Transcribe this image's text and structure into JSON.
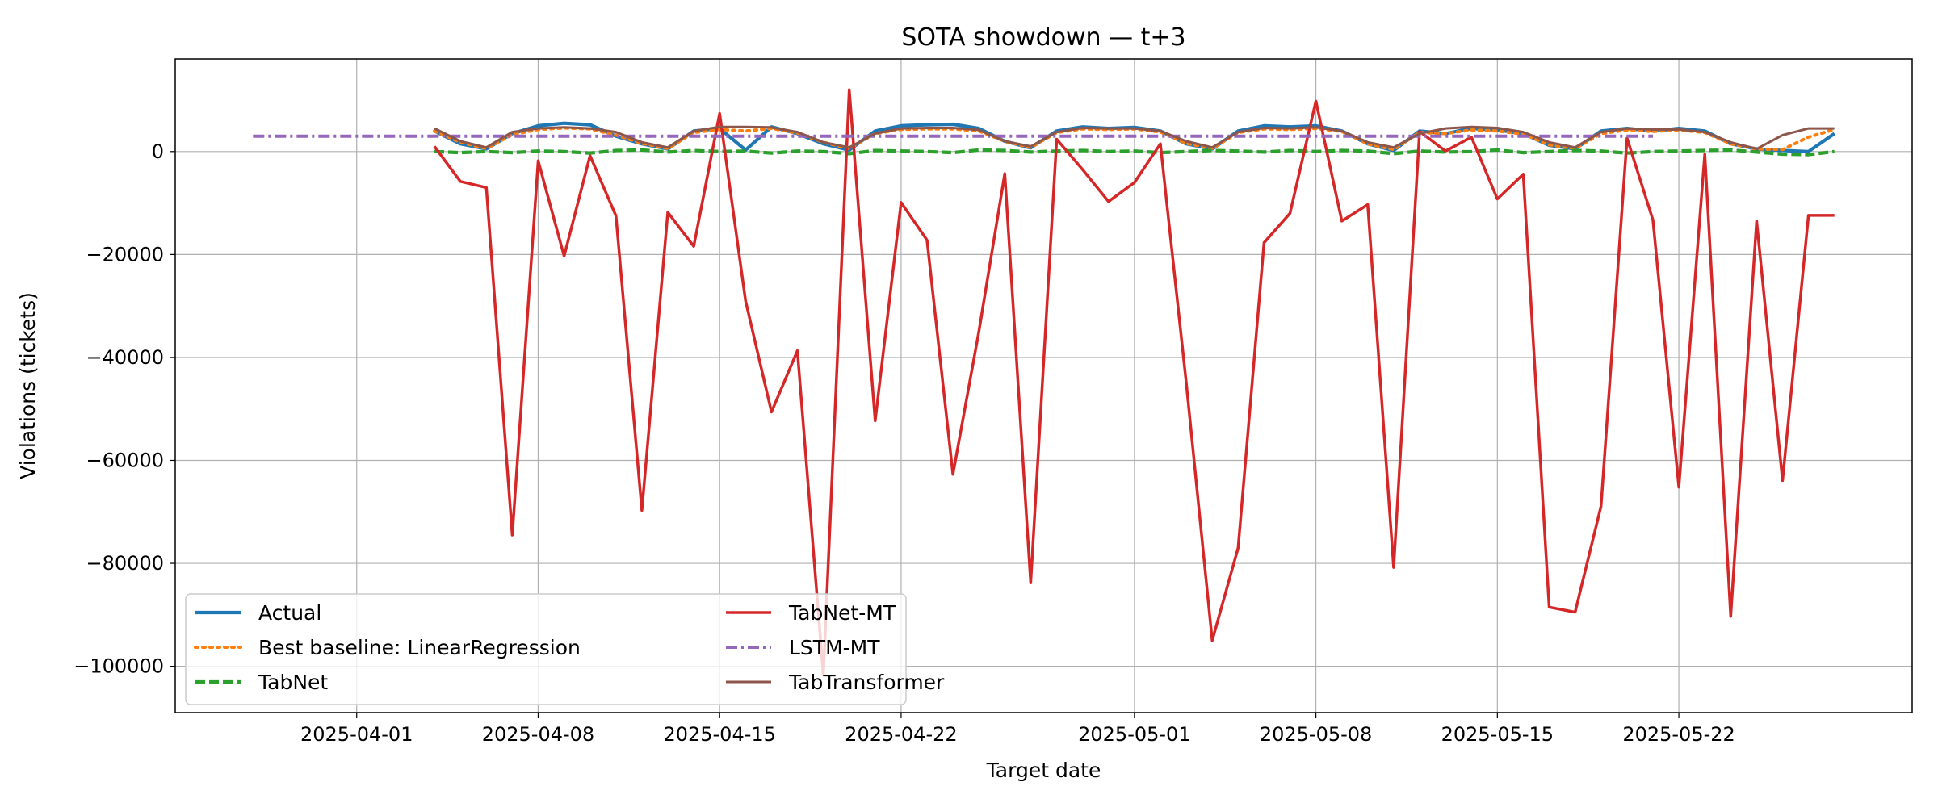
{
  "chart_data": {
    "type": "line",
    "title": "SOTA showdown — t+3",
    "xlabel": "Target date",
    "ylabel": "Violations (tickets)",
    "x_axis": "date",
    "xlim": [
      "2025-03-25",
      "2025-05-31"
    ],
    "ylim": [
      -109000,
      18000
    ],
    "x_ticks": [
      "2025-04-01",
      "2025-04-08",
      "2025-04-15",
      "2025-04-22",
      "2025-05-01",
      "2025-05-08",
      "2025-05-15",
      "2025-05-22"
    ],
    "y_ticks": [
      -100000,
      -80000,
      -60000,
      -40000,
      -20000,
      0
    ],
    "y_tick_labels": [
      "−100000",
      "−80000",
      "−60000",
      "−40000",
      "−20000",
      "0"
    ],
    "grid": true,
    "legend_position": "lower left",
    "series": [
      {
        "name": "Actual",
        "color": "#1f77b4",
        "style": "solid",
        "x": [
          "2025-04-04",
          "2025-04-05",
          "2025-04-06",
          "2025-04-07",
          "2025-04-08",
          "2025-04-09",
          "2025-04-10",
          "2025-04-11",
          "2025-04-12",
          "2025-04-13",
          "2025-04-14",
          "2025-04-15",
          "2025-04-16",
          "2025-04-17",
          "2025-04-18",
          "2025-04-19",
          "2025-04-20",
          "2025-04-21",
          "2025-04-22",
          "2025-04-23",
          "2025-04-24",
          "2025-04-25",
          "2025-04-26",
          "2025-04-27",
          "2025-04-28",
          "2025-04-29",
          "2025-04-30",
          "2025-05-01",
          "2025-05-02",
          "2025-05-03",
          "2025-05-04",
          "2025-05-05",
          "2025-05-06",
          "2025-05-07",
          "2025-05-08",
          "2025-05-09",
          "2025-05-10",
          "2025-05-11",
          "2025-05-12",
          "2025-05-13",
          "2025-05-14",
          "2025-05-15",
          "2025-05-16",
          "2025-05-17",
          "2025-05-18",
          "2025-05-19",
          "2025-05-20",
          "2025-05-21",
          "2025-05-22",
          "2025-05-23",
          "2025-05-24",
          "2025-05-25",
          "2025-05-26",
          "2025-05-27",
          "2025-05-28"
        ],
        "y": [
          4000,
          1500,
          500,
          3500,
          5000,
          5500,
          5200,
          3000,
          1500,
          500,
          4000,
          4500,
          300,
          4800,
          3500,
          1500,
          300,
          4000,
          5000,
          5200,
          5300,
          4500,
          2000,
          700,
          4000,
          4800,
          4500,
          4700,
          4000,
          1500,
          500,
          4000,
          5000,
          4800,
          5000,
          4000,
          1500,
          200,
          4000,
          3500,
          4500,
          4200,
          3500,
          1200,
          500,
          4000,
          4500,
          4000,
          4500,
          4000,
          1500,
          500,
          200,
          0,
          3500
        ]
      },
      {
        "name": "Best baseline: LinearRegression",
        "color": "#ff7f0e",
        "style": "dotted",
        "x": [
          "2025-04-04",
          "2025-04-05",
          "2025-04-06",
          "2025-04-07",
          "2025-04-08",
          "2025-04-09",
          "2025-04-10",
          "2025-04-11",
          "2025-04-12",
          "2025-04-13",
          "2025-04-14",
          "2025-04-15",
          "2025-04-16",
          "2025-04-17",
          "2025-04-18",
          "2025-04-19",
          "2025-04-20",
          "2025-04-21",
          "2025-04-22",
          "2025-04-23",
          "2025-04-24",
          "2025-04-25",
          "2025-04-26",
          "2025-04-27",
          "2025-04-28",
          "2025-04-29",
          "2025-04-30",
          "2025-05-01",
          "2025-05-02",
          "2025-05-03",
          "2025-05-04",
          "2025-05-05",
          "2025-05-06",
          "2025-05-07",
          "2025-05-08",
          "2025-05-09",
          "2025-05-10",
          "2025-05-11",
          "2025-05-12",
          "2025-05-13",
          "2025-05-14",
          "2025-05-15",
          "2025-05-16",
          "2025-05-17",
          "2025-05-18",
          "2025-05-19",
          "2025-05-20",
          "2025-05-21",
          "2025-05-22",
          "2025-05-23",
          "2025-05-24",
          "2025-05-25",
          "2025-05-26",
          "2025-05-27",
          "2025-05-28"
        ],
        "y": [
          4000,
          1800,
          600,
          3300,
          4300,
          4600,
          4400,
          3200,
          1600,
          600,
          3700,
          4300,
          4000,
          4500,
          3600,
          1800,
          600,
          3500,
          4300,
          4400,
          4400,
          4000,
          2000,
          800,
          3700,
          4400,
          4300,
          4400,
          3800,
          1600,
          600,
          3700,
          4400,
          4300,
          4500,
          3900,
          1500,
          400,
          3700,
          3500,
          4200,
          4000,
          3400,
          1300,
          600,
          3500,
          4200,
          3900,
          4200,
          3700,
          1500,
          500,
          400,
          2800,
          4300
        ]
      },
      {
        "name": "TabNet",
        "color": "#2ca02c",
        "style": "dashed",
        "x": [
          "2025-04-04",
          "2025-04-05",
          "2025-04-06",
          "2025-04-07",
          "2025-04-08",
          "2025-04-09",
          "2025-04-10",
          "2025-04-11",
          "2025-04-12",
          "2025-04-13",
          "2025-04-14",
          "2025-04-15",
          "2025-04-16",
          "2025-04-17",
          "2025-04-18",
          "2025-04-19",
          "2025-04-20",
          "2025-04-21",
          "2025-04-22",
          "2025-04-23",
          "2025-04-24",
          "2025-04-25",
          "2025-04-26",
          "2025-04-27",
          "2025-04-28",
          "2025-04-29",
          "2025-04-30",
          "2025-05-01",
          "2025-05-02",
          "2025-05-03",
          "2025-05-04",
          "2025-05-05",
          "2025-05-06",
          "2025-05-07",
          "2025-05-08",
          "2025-05-09",
          "2025-05-10",
          "2025-05-11",
          "2025-05-12",
          "2025-05-13",
          "2025-05-14",
          "2025-05-15",
          "2025-05-16",
          "2025-05-17",
          "2025-05-18",
          "2025-05-19",
          "2025-05-20",
          "2025-05-21",
          "2025-05-22",
          "2025-05-23",
          "2025-05-24",
          "2025-05-25",
          "2025-05-26",
          "2025-05-27",
          "2025-05-28"
        ],
        "y": [
          0,
          -200,
          0,
          -200,
          100,
          0,
          -300,
          200,
          300,
          -100,
          200,
          0,
          100,
          -300,
          100,
          0,
          -400,
          200,
          100,
          0,
          -200,
          300,
          200,
          -100,
          100,
          200,
          0,
          100,
          -200,
          0,
          200,
          100,
          -100,
          200,
          0,
          200,
          100,
          -400,
          100,
          -100,
          0,
          300,
          -200,
          0,
          200,
          100,
          -300,
          0,
          100,
          200,
          300,
          -100,
          -500,
          -600,
          0
        ]
      },
      {
        "name": "TabNet-MT",
        "color": "#d62728",
        "style": "solid",
        "x": [
          "2025-04-04",
          "2025-04-05",
          "2025-04-06",
          "2025-04-07",
          "2025-04-08",
          "2025-04-09",
          "2025-04-10",
          "2025-04-11",
          "2025-04-12",
          "2025-04-13",
          "2025-04-14",
          "2025-04-15",
          "2025-04-16",
          "2025-04-17",
          "2025-04-18",
          "2025-04-19",
          "2025-04-20",
          "2025-04-21",
          "2025-04-22",
          "2025-04-23",
          "2025-04-24",
          "2025-04-25",
          "2025-04-26",
          "2025-04-27",
          "2025-04-28",
          "2025-04-29",
          "2025-04-30",
          "2025-05-01",
          "2025-05-02",
          "2025-05-03",
          "2025-05-04",
          "2025-05-05",
          "2025-05-06",
          "2025-05-07",
          "2025-05-08",
          "2025-05-09",
          "2025-05-10",
          "2025-05-11",
          "2025-05-12",
          "2025-05-13",
          "2025-05-14",
          "2025-05-15",
          "2025-05-16",
          "2025-05-17",
          "2025-05-18",
          "2025-05-19",
          "2025-05-20",
          "2025-05-21",
          "2025-05-22",
          "2025-05-23",
          "2025-05-24",
          "2025-05-25",
          "2025-05-26",
          "2025-05-27",
          "2025-05-28"
        ],
        "y": [
          1000,
          -5800,
          -7000,
          -74500,
          -1800,
          -20300,
          -800,
          -12500,
          -69700,
          -11800,
          -18400,
          7400,
          -29000,
          -50600,
          -38700,
          -101700,
          12000,
          -52300,
          -9900,
          -17200,
          -62700,
          -35000,
          -4300,
          -83800,
          2400,
          -3500,
          -9700,
          -6000,
          1500,
          -45000,
          -95000,
          -77000,
          -17700,
          -12000,
          9800,
          -13500,
          -10300,
          -80800,
          3900,
          100,
          2800,
          -9200,
          -4400,
          -88500,
          -89500,
          -68900,
          2600,
          -13300,
          -65200,
          -500,
          -90300,
          -13500,
          -63900,
          -12400,
          -12400
        ]
      },
      {
        "name": "LSTM-MT",
        "color": "#9467bd",
        "style": "dashdot",
        "x": [
          "2025-03-28",
          "2025-05-21"
        ],
        "y": [
          3000,
          3000
        ]
      },
      {
        "name": "TabTransformer",
        "color": "#8c564b",
        "style": "solid",
        "x": [
          "2025-04-04",
          "2025-04-05",
          "2025-04-06",
          "2025-04-07",
          "2025-04-08",
          "2025-04-09",
          "2025-04-10",
          "2025-04-11",
          "2025-04-12",
          "2025-04-13",
          "2025-04-14",
          "2025-04-15",
          "2025-04-16",
          "2025-04-17",
          "2025-04-18",
          "2025-04-19",
          "2025-04-20",
          "2025-04-21",
          "2025-04-22",
          "2025-04-23",
          "2025-04-24",
          "2025-04-25",
          "2025-04-26",
          "2025-04-27",
          "2025-04-28",
          "2025-04-29",
          "2025-04-30",
          "2025-05-01",
          "2025-05-02",
          "2025-05-03",
          "2025-05-04",
          "2025-05-05",
          "2025-05-06",
          "2025-05-07",
          "2025-05-08",
          "2025-05-09",
          "2025-05-10",
          "2025-05-11",
          "2025-05-12",
          "2025-05-13",
          "2025-05-14",
          "2025-05-15",
          "2025-05-16",
          "2025-05-17",
          "2025-05-18",
          "2025-05-19",
          "2025-05-20",
          "2025-05-21",
          "2025-05-22",
          "2025-05-23",
          "2025-05-24",
          "2025-05-25",
          "2025-05-26",
          "2025-05-27",
          "2025-05-28"
        ],
        "y": [
          4500,
          2000,
          800,
          3800,
          4500,
          4700,
          4500,
          3800,
          1800,
          800,
          4000,
          4800,
          4800,
          4700,
          3800,
          1800,
          800,
          3500,
          4500,
          4600,
          4600,
          4200,
          2000,
          1000,
          3800,
          4600,
          4500,
          4500,
          4000,
          2000,
          800,
          3800,
          4600,
          4500,
          4700,
          4000,
          1800,
          800,
          3500,
          4500,
          4800,
          4600,
          3800,
          1800,
          800,
          3800,
          4500,
          4300,
          4300,
          3800,
          1800,
          500,
          3200,
          4500,
          4500
        ]
      }
    ]
  }
}
